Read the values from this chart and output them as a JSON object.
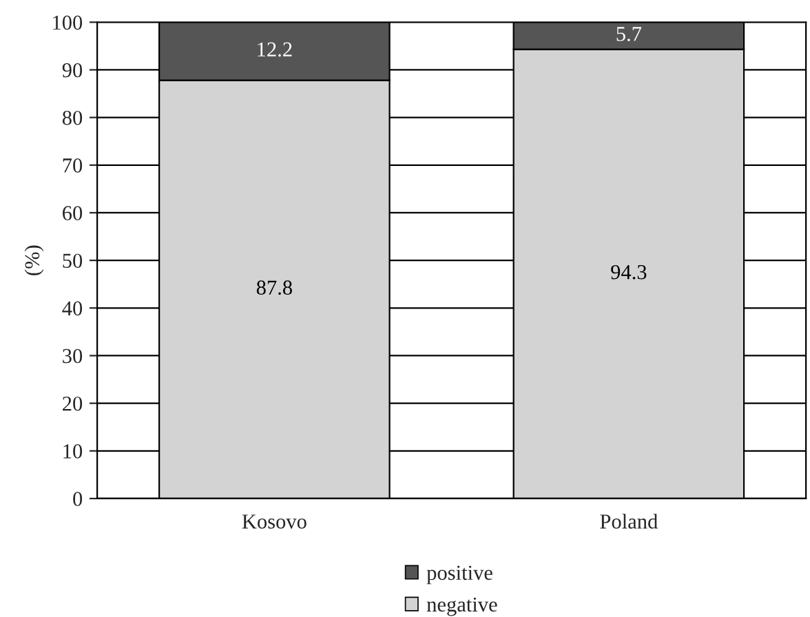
{
  "chart_data": {
    "type": "bar",
    "stacked": true,
    "categories": [
      "Kosovo",
      "Poland"
    ],
    "series": [
      {
        "name": "negative",
        "color": "#d3d3d3",
        "values": [
          87.8,
          94.3
        ]
      },
      {
        "name": "positive",
        "color": "#555555",
        "values": [
          12.2,
          5.7
        ]
      }
    ],
    "ylabel": "(%)",
    "ylim": [
      0,
      100
    ],
    "yticks": [
      0,
      10,
      20,
      30,
      40,
      50,
      60,
      70,
      80,
      90,
      100
    ],
    "grid": "y",
    "legend": "bottom",
    "data_labels": true
  }
}
